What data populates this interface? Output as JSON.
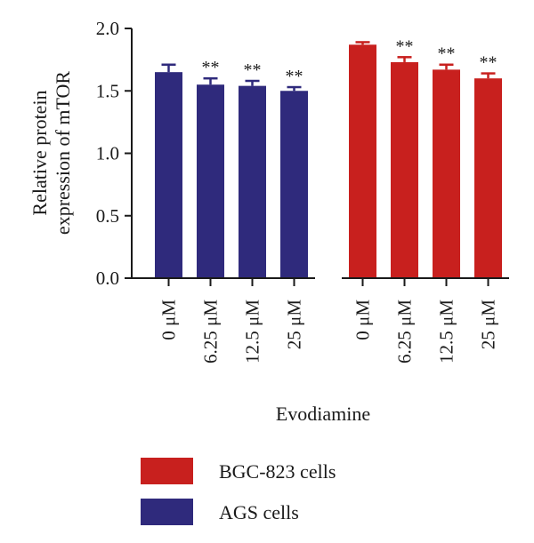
{
  "chart_data": {
    "type": "bar",
    "ylabel_lines": [
      "Relative protein",
      "expression of mTOR"
    ],
    "xlabel": "Evodiamine",
    "ylim": [
      0,
      2.0
    ],
    "yticks": [
      "0.0",
      "0.5",
      "1.0",
      "1.5",
      "2.0"
    ],
    "grid": false,
    "legend_position": "bottom",
    "groups": [
      {
        "name": "AGS cells",
        "color": "#2f2a7c",
        "categories": [
          "0 μM",
          "6.25 μM",
          "12.5 μM",
          "25 μM"
        ],
        "values": [
          1.65,
          1.55,
          1.54,
          1.5
        ],
        "errors": [
          0.06,
          0.05,
          0.04,
          0.03
        ],
        "significance": [
          "",
          "**",
          "**",
          "**"
        ]
      },
      {
        "name": "BGC-823 cells",
        "color": "#c8201e",
        "categories": [
          "0 μM",
          "6.25 μM",
          "12.5 μM",
          "25 μM"
        ],
        "values": [
          1.87,
          1.73,
          1.67,
          1.6
        ],
        "errors": [
          0.02,
          0.04,
          0.04,
          0.04
        ],
        "significance": [
          "",
          "**",
          "**",
          "**"
        ]
      }
    ],
    "legend": [
      {
        "label": "BGC-823 cells",
        "color": "#c8201e"
      },
      {
        "label": "AGS cells",
        "color": "#2f2a7c"
      }
    ]
  }
}
